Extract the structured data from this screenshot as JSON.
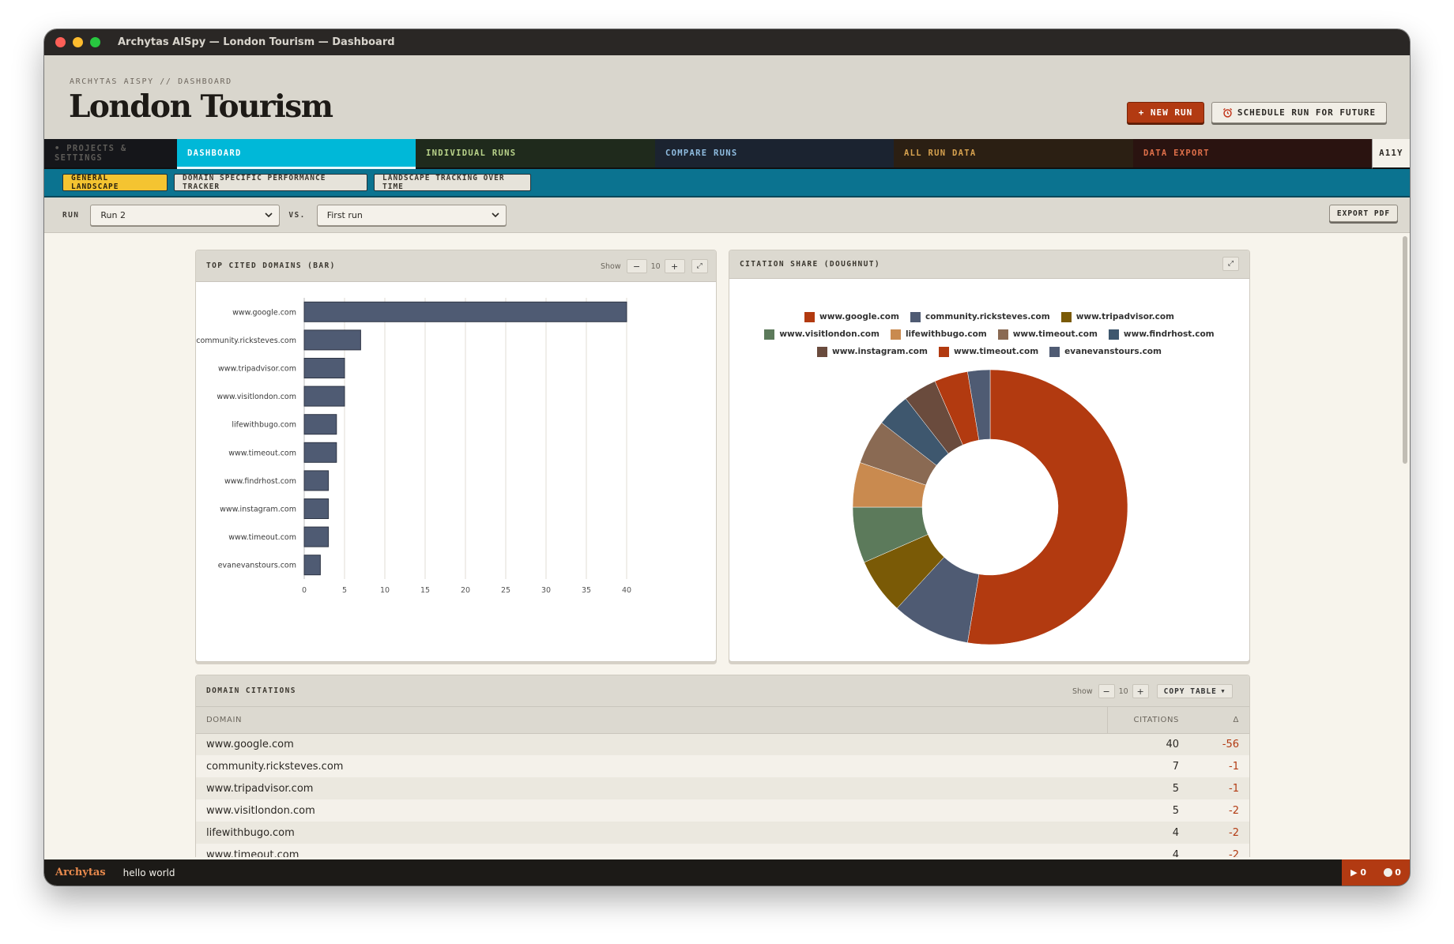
{
  "window": {
    "title": "Archytas AISpy — London Tourism — Dashboard"
  },
  "header": {
    "crumb": "ARCHYTAS AISPY // DASHBOARD",
    "title": "London Tourism",
    "new_run_label": "+ NEW RUN",
    "schedule_label": "SCHEDULE RUN FOR FUTURE"
  },
  "tabs": [
    {
      "label": "• PROJECTS & SETTINGS",
      "bg": "#15161a",
      "fg": "#5d5b57"
    },
    {
      "label": "DASHBOARD",
      "bg": "#00b8d8",
      "fg": "#ffffff",
      "active": true
    },
    {
      "label": "INDIVIDUAL RUNS",
      "bg": "#1f2a1c",
      "fg": "#b9d38a"
    },
    {
      "label": "COMPARE RUNS",
      "bg": "#1b2330",
      "fg": "#8fbce0"
    },
    {
      "label": "ALL RUN DATA",
      "bg": "#2b1f13",
      "fg": "#d7a24f"
    },
    {
      "label": "DATA EXPORT",
      "bg": "#2a1310",
      "fg": "#e0704a"
    },
    {
      "label": "A11Y",
      "bg": "#f4f1ea",
      "fg": "#2c2924"
    }
  ],
  "subnav": [
    {
      "label": "GENERAL LANDSCAPE",
      "active": true
    },
    {
      "label": "DOMAIN SPECIFIC PERFORMANCE TRACKER",
      "active": false
    },
    {
      "label": "LANDSCAPE TRACKING OVER TIME",
      "active": false
    }
  ],
  "runbar": {
    "run_label": "RUN",
    "run_value": "Run 2",
    "vs_label": "VS.",
    "vs_value": "First run",
    "export_label": "EXPORT PDF"
  },
  "bar_panel": {
    "title": "TOP CITED DOMAINS (BAR)",
    "show_label": "Show",
    "show_count": "10",
    "minus": "−",
    "plus": "+",
    "expand": "⤢"
  },
  "doughnut_panel": {
    "title": "CITATION SHARE (DOUGHNUT)",
    "expand": "⤢"
  },
  "chart_data": [
    {
      "type": "bar",
      "orientation": "horizontal",
      "categories": [
        "www.google.com",
        "community.ricksteves.com",
        "www.tripadvisor.com",
        "www.visitlondon.com",
        "lifewithbugo.com",
        "www.timeout.com",
        "www.findrhost.com",
        "www.instagram.com",
        "www.timeout.com",
        "evanevanstours.com"
      ],
      "values": [
        40,
        7,
        5,
        5,
        4,
        4,
        3,
        3,
        3,
        2
      ],
      "xlim": [
        0,
        40
      ],
      "xticks": [
        0,
        5,
        10,
        15,
        20,
        25,
        30,
        35,
        40
      ],
      "grid": true,
      "bar_color": "#4f5b73"
    },
    {
      "type": "pie",
      "hole": true,
      "labels": [
        "www.google.com",
        "community.ricksteves.com",
        "www.tripadvisor.com",
        "www.visitlondon.com",
        "lifewithbugo.com",
        "www.timeout.com",
        "www.findrhost.com",
        "www.instagram.com",
        "www.timeout.com",
        "evanevanstours.com"
      ],
      "values": [
        40,
        7,
        5,
        5,
        4,
        4,
        3,
        3,
        3,
        2
      ],
      "colors": [
        "#b23a10",
        "#4f5b73",
        "#7a5a06",
        "#5c7a5b",
        "#c98a4f",
        "#8a6a53",
        "#3e576e",
        "#6a4b3d",
        "#b23a10",
        "#4f5b73"
      ],
      "legend_position": "top"
    }
  ],
  "table_panel": {
    "title": "DOMAIN CITATIONS",
    "show_label": "Show",
    "show_count": "10",
    "minus": "−",
    "plus": "+",
    "copy_label": "COPY TABLE",
    "columns": [
      "DOMAIN",
      "CITATIONS",
      "Δ"
    ],
    "rows": [
      {
        "domain": "www.google.com",
        "citations": "40",
        "delta": "-56"
      },
      {
        "domain": "community.ricksteves.com",
        "citations": "7",
        "delta": "-1"
      },
      {
        "domain": "www.tripadvisor.com",
        "citations": "5",
        "delta": "-1"
      },
      {
        "domain": "www.visitlondon.com",
        "citations": "5",
        "delta": "-2"
      },
      {
        "domain": "lifewithbugo.com",
        "citations": "4",
        "delta": "-2"
      },
      {
        "domain": "www.timeout.com",
        "citations": "4",
        "delta": "-2"
      }
    ]
  },
  "statusbar": {
    "brand": "Archytas",
    "message": "hello world",
    "runs_count": "▶ 0",
    "bugs_count": "0"
  }
}
